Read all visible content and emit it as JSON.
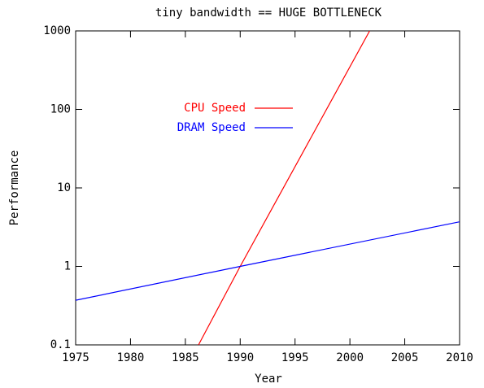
{
  "chart_data": {
    "type": "line",
    "title": "tiny bandwidth == HUGE BOTTLENECK",
    "x_label": "Year",
    "y_label": "Performance",
    "xlim": [
      1975,
      2010
    ],
    "xticks": [
      1975,
      1980,
      1985,
      1990,
      1995,
      2000,
      2005,
      2010
    ],
    "ylim": [
      0.1,
      1000
    ],
    "yticks": [
      0.1,
      1,
      10,
      100,
      1000
    ],
    "log_y": true,
    "legend": "upper left",
    "series": [
      {
        "name": "CPU Speed",
        "color": "#ff0000",
        "x": [
          1986.2,
          1990,
          2001.8
        ],
        "values": [
          0.1,
          1,
          1000
        ]
      },
      {
        "name": "DRAM Speed",
        "color": "#0000ff",
        "x": [
          1975,
          1990,
          2010
        ],
        "values": [
          0.37,
          1,
          3.7
        ]
      }
    ]
  }
}
